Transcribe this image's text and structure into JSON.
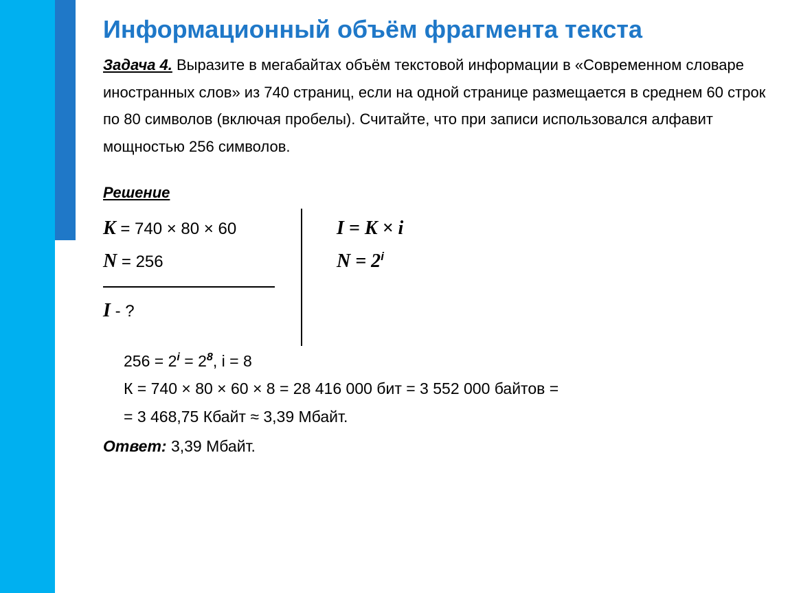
{
  "title": "Информационный объём фрагмента текста",
  "problem": {
    "label": "Задача 4.",
    "text": " Выразите в мегабайтах объём текстовой информации в «Современном словаре иностранных слов» из 740 страниц, если на одной странице размещается в среднем 60 строк по 80 символов (включая пробелы). Считайте, что при записи использовался алфавит мощностью 256 символов."
  },
  "solution": {
    "label": "Решение",
    "given": {
      "k_line": " = 740 × 80 × 60",
      "n_line": " = 256",
      "find": " - ?"
    },
    "formulas": {
      "f1_pre": "I = K × ",
      "f1_post": "i",
      "f2_pre": "N = 2",
      "f2_sup": "i"
    },
    "work": {
      "l1a": "256 = 2",
      "l1b": " = 2",
      "l1c": ", ",
      "l1d": " = 8",
      "l2": "К = 740 × 80 × 60 × 8 = 28 416 000 бит = 3 552 000 байтов =",
      "l3": "= 3 468,75 Кбайт  ≈  3,39 Мбайт."
    },
    "answer": {
      "label": "Ответ:",
      "text": " 3,39 Мбайт."
    }
  },
  "style": {
    "title_color": "#1f78c8",
    "sidebar_cyan": "#00b0f0",
    "sidebar_blue": "#1f78c8",
    "text_color": "#000000",
    "title_fontsize": 36,
    "body_fontsize": 22
  }
}
